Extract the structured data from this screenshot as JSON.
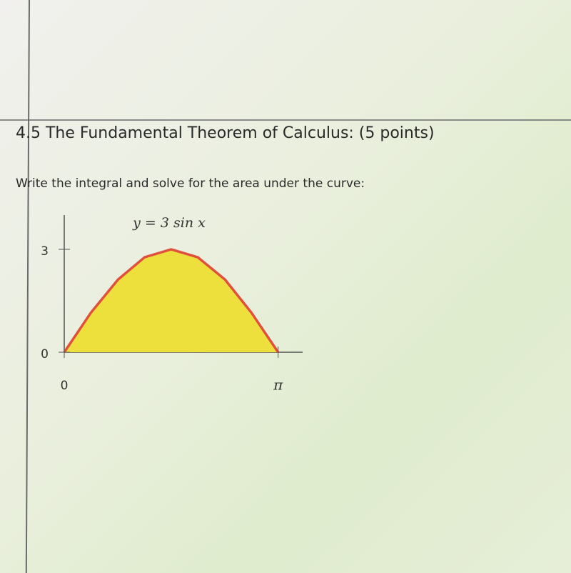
{
  "header": {
    "title": "4.5 The Fundamental Theorem of Calculus: (5 points)"
  },
  "prompt": "Write the integral and solve for the area under the curve:",
  "chart_data": {
    "type": "area",
    "title": "y = 3 sin x",
    "x": [
      0,
      0.39,
      0.79,
      1.18,
      1.57,
      1.96,
      2.36,
      2.75,
      3.14
    ],
    "values": [
      0,
      1.15,
      2.12,
      2.77,
      3,
      2.77,
      2.12,
      1.15,
      0
    ],
    "fill_color": "#eee03c",
    "line_color": "#e0503c",
    "xlim": [
      0,
      3.5
    ],
    "ylim": [
      0,
      4
    ],
    "xticks": [
      0,
      {
        "value": 3.14,
        "label": "π"
      }
    ],
    "yticks": [
      0,
      3
    ],
    "grid": false
  }
}
